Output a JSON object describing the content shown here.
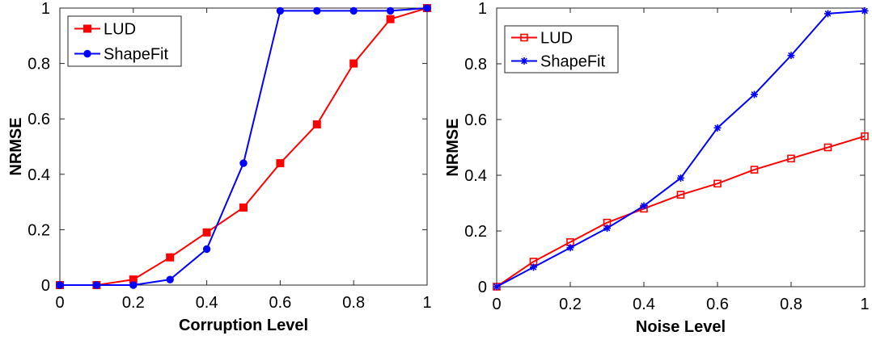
{
  "chart_data": [
    {
      "type": "line",
      "xlabel": "Corruption Level",
      "ylabel": "NRMSE",
      "xlim": [
        0,
        1
      ],
      "ylim": [
        0,
        1
      ],
      "xticks": [
        "0",
        "0.2",
        "0.4",
        "0.6",
        "0.8",
        "1"
      ],
      "yticks": [
        "0",
        "0.2",
        "0.4",
        "0.6",
        "0.8",
        "1"
      ],
      "legend_position": "top-left",
      "series": [
        {
          "name": "LUD",
          "color": "#ff0000",
          "marker": "filled-square",
          "x": [
            0,
            0.1,
            0.2,
            0.3,
            0.4,
            0.5,
            0.6,
            0.7,
            0.8,
            0.9,
            1.0
          ],
          "y": [
            0,
            0,
            0.02,
            0.1,
            0.19,
            0.28,
            0.44,
            0.58,
            0.8,
            0.96,
            1.0
          ]
        },
        {
          "name": "ShapeFit",
          "color": "#0000ff",
          "marker": "filled-circle",
          "x": [
            0,
            0.1,
            0.2,
            0.3,
            0.4,
            0.5,
            0.6,
            0.7,
            0.8,
            0.9,
            1.0
          ],
          "y": [
            0,
            0,
            0,
            0.02,
            0.13,
            0.44,
            0.99,
            0.99,
            0.99,
            0.99,
            1.0
          ]
        }
      ]
    },
    {
      "type": "line",
      "xlabel": "Noise Level",
      "ylabel": "NRMSE",
      "xlim": [
        0,
        1
      ],
      "ylim": [
        0,
        1
      ],
      "xticks": [
        "0",
        "0.2",
        "0.4",
        "0.6",
        "0.8",
        "1"
      ],
      "yticks": [
        "0",
        "0.2",
        "0.4",
        "0.6",
        "0.8",
        "1"
      ],
      "legend_position": "top-left",
      "series": [
        {
          "name": "LUD",
          "color": "#ff0000",
          "marker": "open-square",
          "x": [
            0,
            0.1,
            0.2,
            0.3,
            0.4,
            0.5,
            0.6,
            0.7,
            0.8,
            0.9,
            1.0
          ],
          "y": [
            0,
            0.09,
            0.16,
            0.23,
            0.28,
            0.33,
            0.37,
            0.42,
            0.46,
            0.5,
            0.54
          ]
        },
        {
          "name": "ShapeFit",
          "color": "#0000ff",
          "marker": "asterisk",
          "x": [
            0,
            0.1,
            0.2,
            0.3,
            0.4,
            0.5,
            0.6,
            0.7,
            0.8,
            0.9,
            1.0
          ],
          "y": [
            0,
            0.07,
            0.14,
            0.21,
            0.29,
            0.39,
            0.57,
            0.69,
            0.83,
            0.98,
            0.99
          ]
        }
      ]
    }
  ]
}
